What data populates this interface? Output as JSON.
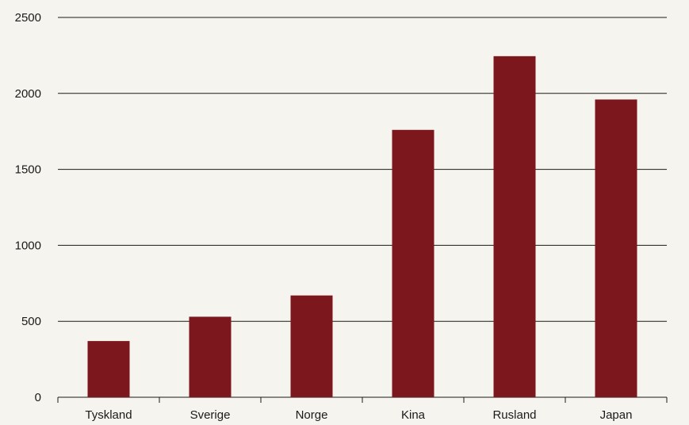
{
  "chart_data": {
    "type": "bar",
    "categories": [
      "Tyskland",
      "Sverige",
      "Norge",
      "Kina",
      "Rusland",
      "Japan"
    ],
    "values": [
      370,
      530,
      670,
      1760,
      2245,
      1960
    ],
    "ylim": [
      0,
      2500
    ],
    "yticks": [
      "0",
      "500",
      "1000",
      "1500",
      "2000",
      "2500"
    ],
    "grid": true,
    "bar_color": "#7d171e",
    "background_color": "#f6f4ee",
    "legend": "none"
  }
}
